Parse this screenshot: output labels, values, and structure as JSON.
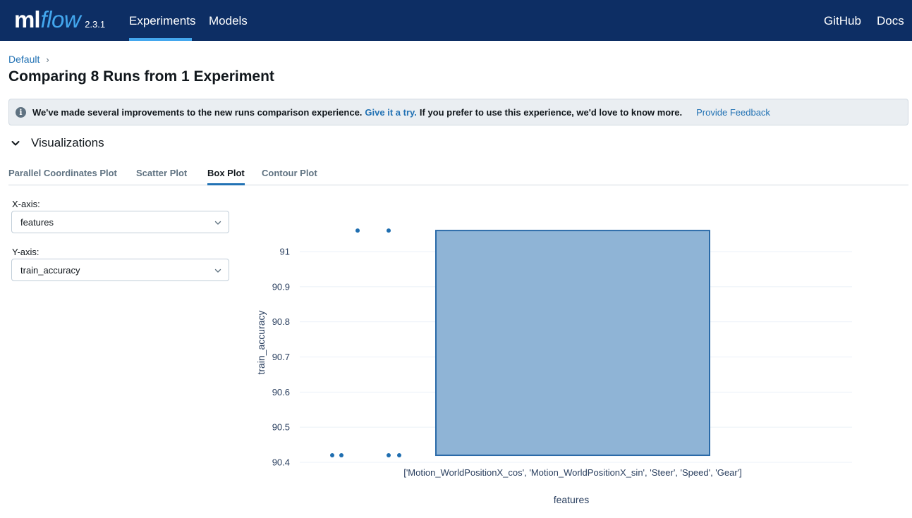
{
  "header": {
    "logo_ml": "ml",
    "logo_flow": "flow",
    "version": "2.3.1",
    "nav": {
      "experiments": "Experiments",
      "models": "Models",
      "github": "GitHub",
      "docs": "Docs"
    }
  },
  "breadcrumb": {
    "default": "Default",
    "sep": "›"
  },
  "page_title": "Comparing 8 Runs from 1 Experiment",
  "banner": {
    "icon": "i",
    "text": "We've made several improvements to the new runs comparison experience.",
    "link": "Give it a try.",
    "text2": "If you prefer to use this experience, we'd love to know more.",
    "feedback": "Provide Feedback"
  },
  "visualizations": {
    "label": "Visualizations"
  },
  "tabs": {
    "parallel": "Parallel Coordinates Plot",
    "scatter": "Scatter Plot",
    "box": "Box Plot",
    "contour": "Contour Plot"
  },
  "controls": {
    "x_label": "X-axis:",
    "x_value": "features",
    "y_label": "Y-axis:",
    "y_value": "train_accuracy"
  },
  "colors": {
    "header_bg": "#0d2e64",
    "accent": "#43a7ee",
    "link": "#2272b4",
    "box_fill": "#8fb4d6",
    "box_stroke": "#2a6aa8",
    "point": "#1f6eb0"
  },
  "chart_data": {
    "type": "box",
    "xlabel": "features",
    "ylabel": "train_accuracy",
    "categories": [
      "['Motion_WorldPositionX_cos', 'Motion_WorldPositionX_sin', 'Steer', 'Speed', 'Gear']"
    ],
    "box": {
      "q1": 90.42,
      "q3": 91.06
    },
    "points": [
      91.06,
      91.06,
      90.42,
      90.42,
      90.42,
      90.42
    ],
    "ylim": [
      90.4,
      91.06
    ],
    "yticks": [
      90.4,
      90.5,
      90.6,
      90.7,
      90.8,
      90.9,
      91
    ],
    "ytick_labels": [
      "90.4",
      "90.5",
      "90.6",
      "90.7",
      "90.8",
      "90.9",
      "91"
    ],
    "grid": true
  }
}
